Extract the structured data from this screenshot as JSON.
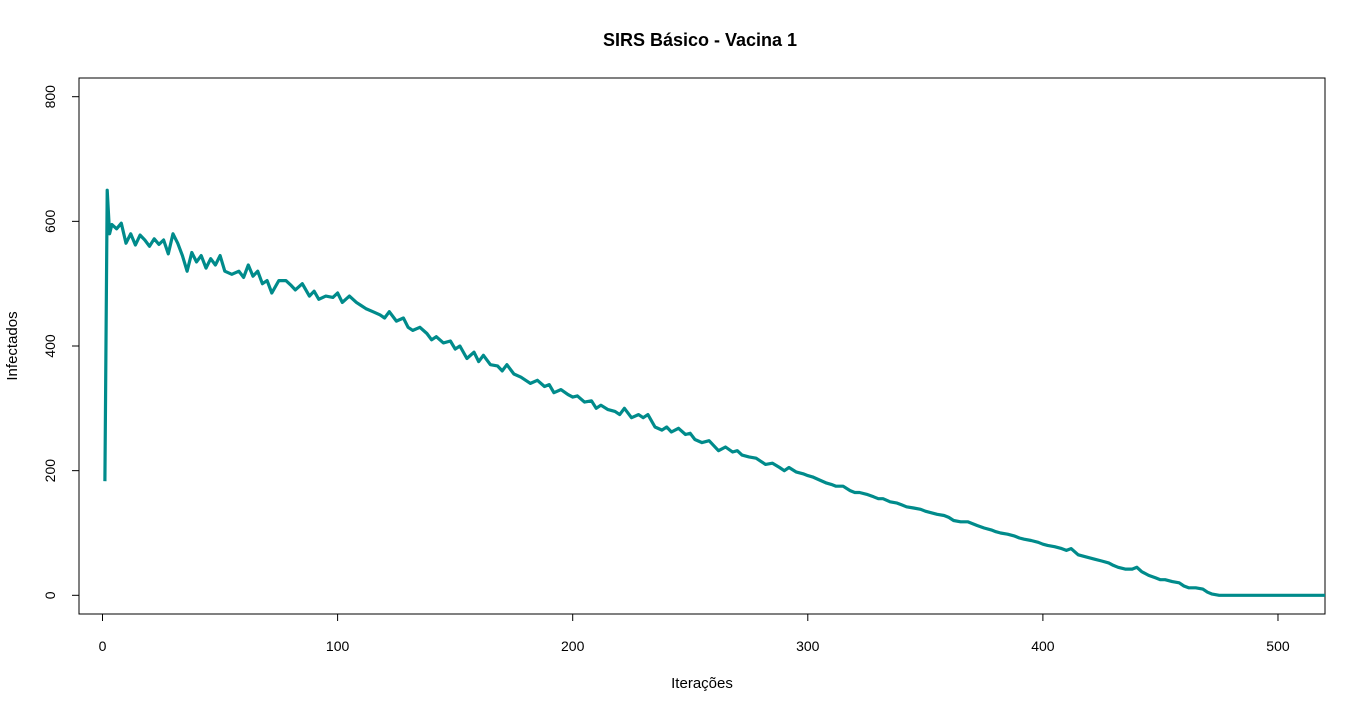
{
  "chart_data": {
    "type": "line",
    "title": "SIRS Básico - Vacina 1",
    "xlabel": "Iterações",
    "ylabel": "Infectados",
    "xlim": [
      -10,
      520
    ],
    "ylim": [
      -30,
      830
    ],
    "x_ticks": [
      0,
      100,
      200,
      300,
      400,
      500
    ],
    "y_ticks": [
      0,
      200,
      400,
      600,
      800
    ],
    "line_color": "#008B8B",
    "grid": false,
    "legend": "none",
    "series": [
      {
        "points": [
          [
            1,
            183
          ],
          [
            2,
            650
          ],
          [
            3,
            580
          ],
          [
            4,
            595
          ],
          [
            6,
            588
          ],
          [
            8,
            597
          ],
          [
            10,
            565
          ],
          [
            12,
            580
          ],
          [
            14,
            562
          ],
          [
            16,
            578
          ],
          [
            18,
            570
          ],
          [
            20,
            560
          ],
          [
            22,
            572
          ],
          [
            24,
            563
          ],
          [
            26,
            570
          ],
          [
            28,
            548
          ],
          [
            30,
            580
          ],
          [
            32,
            565
          ],
          [
            34,
            545
          ],
          [
            36,
            520
          ],
          [
            38,
            550
          ],
          [
            40,
            535
          ],
          [
            42,
            545
          ],
          [
            44,
            525
          ],
          [
            46,
            540
          ],
          [
            48,
            530
          ],
          [
            50,
            545
          ],
          [
            52,
            520
          ],
          [
            55,
            515
          ],
          [
            58,
            520
          ],
          [
            60,
            510
          ],
          [
            62,
            530
          ],
          [
            64,
            512
          ],
          [
            66,
            520
          ],
          [
            68,
            500
          ],
          [
            70,
            505
          ],
          [
            72,
            485
          ],
          [
            75,
            505
          ],
          [
            78,
            505
          ],
          [
            80,
            498
          ],
          [
            82,
            490
          ],
          [
            85,
            500
          ],
          [
            88,
            480
          ],
          [
            90,
            488
          ],
          [
            92,
            475
          ],
          [
            95,
            480
          ],
          [
            98,
            478
          ],
          [
            100,
            485
          ],
          [
            102,
            470
          ],
          [
            105,
            480
          ],
          [
            108,
            470
          ],
          [
            110,
            465
          ],
          [
            112,
            460
          ],
          [
            115,
            455
          ],
          [
            118,
            450
          ],
          [
            120,
            445
          ],
          [
            122,
            455
          ],
          [
            125,
            440
          ],
          [
            128,
            445
          ],
          [
            130,
            430
          ],
          [
            132,
            425
          ],
          [
            135,
            430
          ],
          [
            138,
            420
          ],
          [
            140,
            410
          ],
          [
            142,
            415
          ],
          [
            145,
            405
          ],
          [
            148,
            408
          ],
          [
            150,
            395
          ],
          [
            152,
            400
          ],
          [
            155,
            380
          ],
          [
            158,
            390
          ],
          [
            160,
            375
          ],
          [
            162,
            385
          ],
          [
            165,
            370
          ],
          [
            168,
            368
          ],
          [
            170,
            360
          ],
          [
            172,
            370
          ],
          [
            175,
            355
          ],
          [
            178,
            350
          ],
          [
            180,
            345
          ],
          [
            182,
            340
          ],
          [
            185,
            345
          ],
          [
            188,
            335
          ],
          [
            190,
            338
          ],
          [
            192,
            325
          ],
          [
            195,
            330
          ],
          [
            198,
            322
          ],
          [
            200,
            318
          ],
          [
            202,
            320
          ],
          [
            205,
            310
          ],
          [
            208,
            312
          ],
          [
            210,
            300
          ],
          [
            212,
            305
          ],
          [
            215,
            298
          ],
          [
            218,
            295
          ],
          [
            220,
            290
          ],
          [
            222,
            300
          ],
          [
            225,
            285
          ],
          [
            228,
            290
          ],
          [
            230,
            285
          ],
          [
            232,
            290
          ],
          [
            235,
            270
          ],
          [
            238,
            265
          ],
          [
            240,
            270
          ],
          [
            242,
            262
          ],
          [
            245,
            268
          ],
          [
            248,
            258
          ],
          [
            250,
            260
          ],
          [
            252,
            250
          ],
          [
            255,
            245
          ],
          [
            258,
            248
          ],
          [
            260,
            240
          ],
          [
            262,
            232
          ],
          [
            265,
            238
          ],
          [
            268,
            230
          ],
          [
            270,
            232
          ],
          [
            272,
            225
          ],
          [
            275,
            222
          ],
          [
            278,
            220
          ],
          [
            280,
            215
          ],
          [
            282,
            210
          ],
          [
            285,
            212
          ],
          [
            288,
            205
          ],
          [
            290,
            200
          ],
          [
            292,
            205
          ],
          [
            295,
            198
          ],
          [
            298,
            195
          ],
          [
            300,
            192
          ],
          [
            302,
            190
          ],
          [
            305,
            185
          ],
          [
            308,
            180
          ],
          [
            310,
            178
          ],
          [
            312,
            175
          ],
          [
            315,
            175
          ],
          [
            318,
            168
          ],
          [
            320,
            165
          ],
          [
            322,
            165
          ],
          [
            325,
            162
          ],
          [
            328,
            158
          ],
          [
            330,
            155
          ],
          [
            332,
            155
          ],
          [
            335,
            150
          ],
          [
            338,
            148
          ],
          [
            340,
            145
          ],
          [
            342,
            142
          ],
          [
            345,
            140
          ],
          [
            348,
            138
          ],
          [
            350,
            135
          ],
          [
            352,
            133
          ],
          [
            355,
            130
          ],
          [
            358,
            128
          ],
          [
            360,
            125
          ],
          [
            362,
            120
          ],
          [
            365,
            118
          ],
          [
            368,
            118
          ],
          [
            370,
            115
          ],
          [
            372,
            112
          ],
          [
            375,
            108
          ],
          [
            378,
            105
          ],
          [
            380,
            102
          ],
          [
            382,
            100
          ],
          [
            385,
            98
          ],
          [
            388,
            95
          ],
          [
            390,
            92
          ],
          [
            392,
            90
          ],
          [
            395,
            88
          ],
          [
            398,
            85
          ],
          [
            400,
            82
          ],
          [
            402,
            80
          ],
          [
            405,
            78
          ],
          [
            408,
            75
          ],
          [
            410,
            72
          ],
          [
            412,
            75
          ],
          [
            415,
            65
          ],
          [
            418,
            62
          ],
          [
            420,
            60
          ],
          [
            422,
            58
          ],
          [
            425,
            55
          ],
          [
            428,
            52
          ],
          [
            430,
            48
          ],
          [
            432,
            45
          ],
          [
            435,
            42
          ],
          [
            438,
            42
          ],
          [
            440,
            45
          ],
          [
            442,
            38
          ],
          [
            445,
            32
          ],
          [
            448,
            28
          ],
          [
            450,
            25
          ],
          [
            452,
            25
          ],
          [
            455,
            22
          ],
          [
            458,
            20
          ],
          [
            460,
            15
          ],
          [
            462,
            12
          ],
          [
            465,
            12
          ],
          [
            468,
            10
          ],
          [
            470,
            5
          ],
          [
            472,
            2
          ],
          [
            475,
            0
          ],
          [
            480,
            0
          ],
          [
            490,
            0
          ],
          [
            500,
            0
          ],
          [
            510,
            0
          ],
          [
            520,
            0
          ]
        ]
      }
    ]
  }
}
